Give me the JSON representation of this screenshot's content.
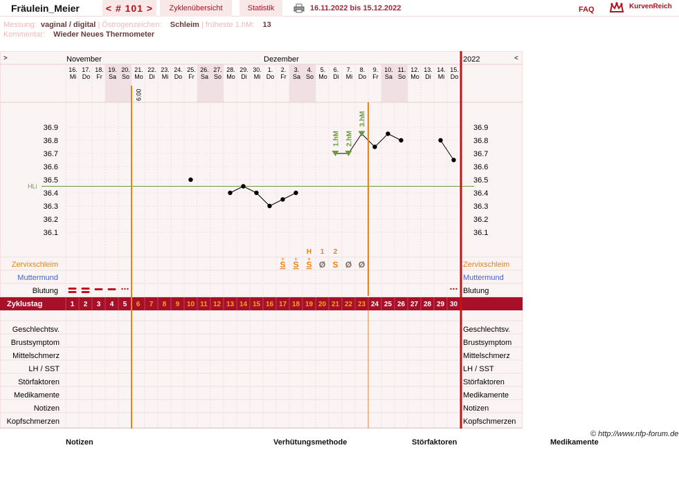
{
  "header": {
    "user_name": "Fräulein_Meier",
    "cycle_nav": "< # 101 >",
    "tab_overview": "Zyklenübersicht",
    "tab_statistics": "Statistik",
    "date_range": "16.11.2022 bis 15.12.2022",
    "faq": "FAQ",
    "logo_text": "KurvenReich"
  },
  "meta": {
    "measurement_label": "Messung:",
    "measurement_value": "vaginal / digital",
    "estrogen_label": "Östrogenzeichen:",
    "estrogen_value": "Schleim",
    "earliest_label": "früheste 1.hM:",
    "earliest_value": "13",
    "comment_label": "Kommentar:",
    "comment_value": "Wieder Neues Thermometer"
  },
  "colors": {
    "brand_red": "#b01020",
    "zyklustag_bar": "#a8102a",
    "cycle_day_highlight": "#f5a800",
    "orange_line": "#f08010",
    "coverline": "#6a9a40",
    "mucus": "#f08010",
    "cervix": "#4a60c0",
    "bleeding": "#c01020",
    "weekend_shade": "#f0e0e4",
    "grid_bg": "#fbf4f4"
  },
  "chart_data": {
    "type": "line",
    "title": "",
    "year": "2022",
    "nav_left": ">",
    "nav_right": "<",
    "months": [
      "November",
      "Dezember"
    ],
    "first_time": "6:00",
    "dates": [
      "16.",
      "17.",
      "18.",
      "19.",
      "20.",
      "21.",
      "22.",
      "23.",
      "24.",
      "25.",
      "26.",
      "27.",
      "28.",
      "29.",
      "30.",
      "1.",
      "2.",
      "3.",
      "4.",
      "5.",
      "6.",
      "7.",
      "8.",
      "9.",
      "10.",
      "11.",
      "12.",
      "13.",
      "14.",
      "15."
    ],
    "weekdays": [
      "Mi",
      "Do",
      "Fr",
      "Sa",
      "So",
      "Mo",
      "Di",
      "Mi",
      "Do",
      "Fr",
      "Sa",
      "So",
      "Mo",
      "Di",
      "Mi",
      "Do",
      "Fr",
      "Sa",
      "So",
      "Mo",
      "Di",
      "Mi",
      "Do",
      "Fr",
      "Sa",
      "So",
      "Mo",
      "Di",
      "Mi",
      "Do"
    ],
    "cycle_days": [
      "1",
      "2",
      "3",
      "4",
      "5",
      "6",
      "7",
      "8",
      "9",
      "10",
      "11",
      "12",
      "13",
      "14",
      "15",
      "16",
      "17",
      "18",
      "19",
      "20",
      "21",
      "22",
      "23",
      "24",
      "25",
      "26",
      "27",
      "28",
      "29",
      "30"
    ],
    "y_ticks": [
      "36.9",
      "36.8",
      "36.7",
      "36.6",
      "36.5",
      "36.4",
      "36.3",
      "36.2",
      "36.1"
    ],
    "ylim": [
      36.0,
      37.0
    ],
    "temperatures": [
      null,
      null,
      null,
      null,
      null,
      null,
      null,
      null,
      null,
      36.5,
      null,
      null,
      36.4,
      36.45,
      36.4,
      36.3,
      36.35,
      36.4,
      null,
      null,
      36.7,
      36.7,
      36.85,
      36.75,
      36.85,
      36.8,
      null,
      null,
      36.8,
      36.65
    ],
    "coverline_label": "HLi",
    "coverline_value": 36.45,
    "high_measurements": [
      {
        "day": 21,
        "label": "1.hM"
      },
      {
        "day": 22,
        "label": "2.hM"
      },
      {
        "day": 23,
        "label": "3.hM"
      }
    ],
    "mucus_markers": [
      {
        "day": 19,
        "label": "H"
      },
      {
        "day": 20,
        "label": "1"
      },
      {
        "day": 21,
        "label": "2"
      }
    ],
    "mucus": [
      "",
      "",
      "",
      "",
      "",
      "",
      "",
      "",
      "",
      "",
      "",
      "",
      "",
      "",
      "",
      "",
      "S+",
      "S+",
      "S+",
      "Ø",
      "S",
      "Ø",
      "Ø",
      "",
      "",
      "",
      "",
      "",
      "",
      ""
    ],
    "bleeding": [
      "heavy",
      "heavy",
      "medium",
      "medium",
      "spotting",
      "",
      "",
      "",
      "",
      "",
      "",
      "",
      "",
      "",
      "",
      "",
      "",
      "",
      "",
      "",
      "",
      "",
      "",
      "",
      "",
      "",
      "",
      "",
      "",
      "spotting"
    ],
    "ovulation_line_after_day": 23,
    "first_day_line_after_day": 5
  },
  "rows": {
    "zervixschleim": "Zervixschleim",
    "muttermund": "Muttermund",
    "blutung": "Blutung",
    "zyklustag": "Zyklustag",
    "extra": [
      "Geschlechtsv.",
      "Brustsymptom",
      "Mittelschmerz",
      "LH / SST",
      "Störfaktoren",
      "Medikamente",
      "Notizen",
      "Kopfschmerzen"
    ]
  },
  "footer": {
    "copyright": "© http://www.nfp-forum.de",
    "notes": "Notizen",
    "contraception": "Verhütungsmethode",
    "disturbances": "Störfaktoren",
    "medication": "Medikamente"
  }
}
